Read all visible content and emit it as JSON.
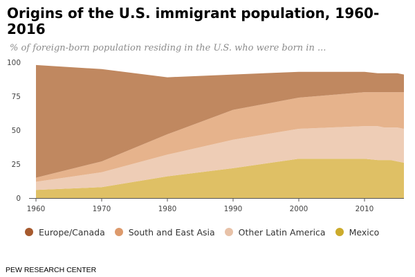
{
  "header": {
    "title": "Origins of the U.S. immigrant population, 1960-2016",
    "subtitle": "% of foreign-born population residing in the U.S. who were born in ..."
  },
  "footer": {
    "source": "PEW RESEARCH CENTER"
  },
  "colors": {
    "europe_canada": "#c08860",
    "south_east_asia": "#e6b38c",
    "other_latin_america": "#eecdb6",
    "mexico": "#dfc065",
    "legend_europe_canada": "#a65a2e",
    "legend_south_east_asia": "#dd9a6c",
    "legend_other_latin_america": "#e8c2a8",
    "legend_mexico": "#ccab2c",
    "axis": "#555555",
    "tick_text": "#444444"
  },
  "chart_data": {
    "type": "area",
    "stacked": true,
    "title": "Origins of the U.S. immigrant population, 1960-2016",
    "subtitle": "% of foreign-born population residing in the U.S. who were born in ...",
    "xlabel": "",
    "ylabel": "",
    "xlim": [
      1960,
      2016
    ],
    "ylim": [
      0,
      100
    ],
    "xticks": [
      1960,
      1970,
      1980,
      1990,
      2000,
      2010
    ],
    "yticks": [
      0,
      25,
      50,
      75,
      100
    ],
    "grid": false,
    "legend_position": "bottom",
    "x": [
      1960,
      1970,
      1980,
      1990,
      2000,
      2010,
      2012,
      2013,
      2014,
      2015,
      2016
    ],
    "series": [
      {
        "name": "Mexico",
        "values": [
          6,
          8,
          16,
          22,
          29,
          29,
          28,
          28,
          28,
          27,
          26
        ]
      },
      {
        "name": "Other Latin America",
        "values": [
          6,
          11,
          16,
          21,
          22,
          24,
          25,
          24,
          24,
          25,
          25
        ]
      },
      {
        "name": "South and East Asia",
        "values": [
          3,
          8,
          15,
          22,
          23,
          25,
          25,
          26,
          26,
          26,
          27
        ]
      },
      {
        "name": "Europe/Canada",
        "values": [
          83,
          68,
          42,
          26,
          19,
          15,
          14,
          14,
          14,
          14,
          13
        ]
      }
    ]
  }
}
